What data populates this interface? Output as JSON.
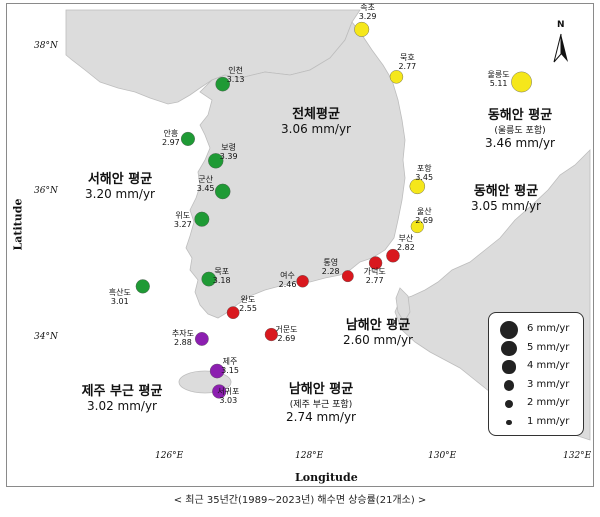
{
  "axes": {
    "x_ticks": [
      "126°E",
      "128°E",
      "130°E",
      "132°E"
    ],
    "y_ticks": [
      "38°N",
      "36°N",
      "34°N"
    ],
    "x_title": "Longitude",
    "y_title": "Latitude"
  },
  "north_arrow": {
    "label": "N",
    "icon": "north-arrow-icon"
  },
  "regions": {
    "national": {
      "title": "전체평균",
      "value": "3.06 mm/yr"
    },
    "west": {
      "title": "서해안 평균",
      "value": "3.20 mm/yr"
    },
    "east_with_ulleung": {
      "title": "동해안 평균",
      "subtitle": "(울릉도 포함)",
      "value": "3.46 mm/yr"
    },
    "east": {
      "title": "동해안 평균",
      "value": "3.05 mm/yr"
    },
    "south": {
      "title": "남해안 평균",
      "value": "2.60 mm/yr"
    },
    "south_jeju": {
      "title": "남해안 평균",
      "subtitle": "(제주 부근 포함)",
      "value": "2.74 mm/yr"
    },
    "jeju": {
      "title": "제주 부근 평균",
      "value": "3.02 mm/yr"
    }
  },
  "colors": {
    "east": "#f5e71b",
    "west": "#1f9a35",
    "south": "#d9181e",
    "jeju": "#8c1fb0",
    "land": "#dcdcdc",
    "sea": "#ffffff",
    "legend_dot": "#222222"
  },
  "stations": [
    {
      "name": "속초",
      "rate": "3.29",
      "rate_num": 3.29,
      "group": "east",
      "lon": 128.6,
      "lat": 38.2
    },
    {
      "name": "묵호",
      "rate": "2.77",
      "rate_num": 2.77,
      "group": "east",
      "lon": 129.1,
      "lat": 37.55
    },
    {
      "name": "울릉도",
      "rate": "5.11",
      "rate_num": 5.11,
      "group": "east",
      "lon": 130.9,
      "lat": 37.48
    },
    {
      "name": "포항",
      "rate": "3.45",
      "rate_num": 3.45,
      "group": "east",
      "lon": 129.4,
      "lat": 36.05
    },
    {
      "name": "울산",
      "rate": "2.69",
      "rate_num": 2.69,
      "group": "east",
      "lon": 129.4,
      "lat": 35.5
    },
    {
      "name": "인천",
      "rate": "3.13",
      "rate_num": 3.13,
      "group": "west",
      "lon": 126.6,
      "lat": 37.45
    },
    {
      "name": "안흥",
      "rate": "2.97",
      "rate_num": 2.97,
      "group": "west",
      "lon": 126.1,
      "lat": 36.7
    },
    {
      "name": "보령",
      "rate": "3.39",
      "rate_num": 3.39,
      "group": "west",
      "lon": 126.5,
      "lat": 36.4
    },
    {
      "name": "군산",
      "rate": "3.45",
      "rate_num": 3.45,
      "group": "west",
      "lon": 126.6,
      "lat": 35.98
    },
    {
      "name": "위도",
      "rate": "3.27",
      "rate_num": 3.27,
      "group": "west",
      "lon": 126.3,
      "lat": 35.6
    },
    {
      "name": "목포",
      "rate": "3.18",
      "rate_num": 3.18,
      "group": "west",
      "lon": 126.4,
      "lat": 34.78
    },
    {
      "name": "흑산도",
      "rate": "3.01",
      "rate_num": 3.01,
      "group": "west",
      "lon": 125.45,
      "lat": 34.68
    },
    {
      "name": "부산",
      "rate": "2.82",
      "rate_num": 2.82,
      "group": "south",
      "lon": 129.05,
      "lat": 35.1
    },
    {
      "name": "가덕도",
      "rate": "2.77",
      "rate_num": 2.77,
      "group": "south",
      "lon": 128.8,
      "lat": 35.0
    },
    {
      "name": "통영",
      "rate": "2.28",
      "rate_num": 2.28,
      "group": "south",
      "lon": 128.4,
      "lat": 34.82
    },
    {
      "name": "여수",
      "rate": "2.46",
      "rate_num": 2.46,
      "group": "south",
      "lon": 127.75,
      "lat": 34.75
    },
    {
      "name": "완도",
      "rate": "2.55",
      "rate_num": 2.55,
      "group": "south",
      "lon": 126.75,
      "lat": 34.32
    },
    {
      "name": "거문도",
      "rate": "2.69",
      "rate_num": 2.69,
      "group": "south",
      "lon": 127.3,
      "lat": 34.02
    },
    {
      "name": "추자도",
      "rate": "2.88",
      "rate_num": 2.88,
      "group": "jeju",
      "lon": 126.3,
      "lat": 33.96
    },
    {
      "name": "제주",
      "rate": "3.15",
      "rate_num": 3.15,
      "group": "jeju",
      "lon": 126.52,
      "lat": 33.52
    },
    {
      "name": "서귀포",
      "rate": "3.03",
      "rate_num": 3.03,
      "group": "jeju",
      "lon": 126.55,
      "lat": 33.24
    }
  ],
  "legend": {
    "items": [
      {
        "label": "6 mm/yr",
        "value": 6
      },
      {
        "label": "5 mm/yr",
        "value": 5
      },
      {
        "label": "4 mm/yr",
        "value": 4
      },
      {
        "label": "3 mm/yr",
        "value": 3
      },
      {
        "label": "2 mm/yr",
        "value": 2
      },
      {
        "label": "1 mm/yr",
        "value": 1
      }
    ]
  },
  "caption": "< 최근 35년간(1989~2023년) 해수면 상승률(21개소) >"
}
